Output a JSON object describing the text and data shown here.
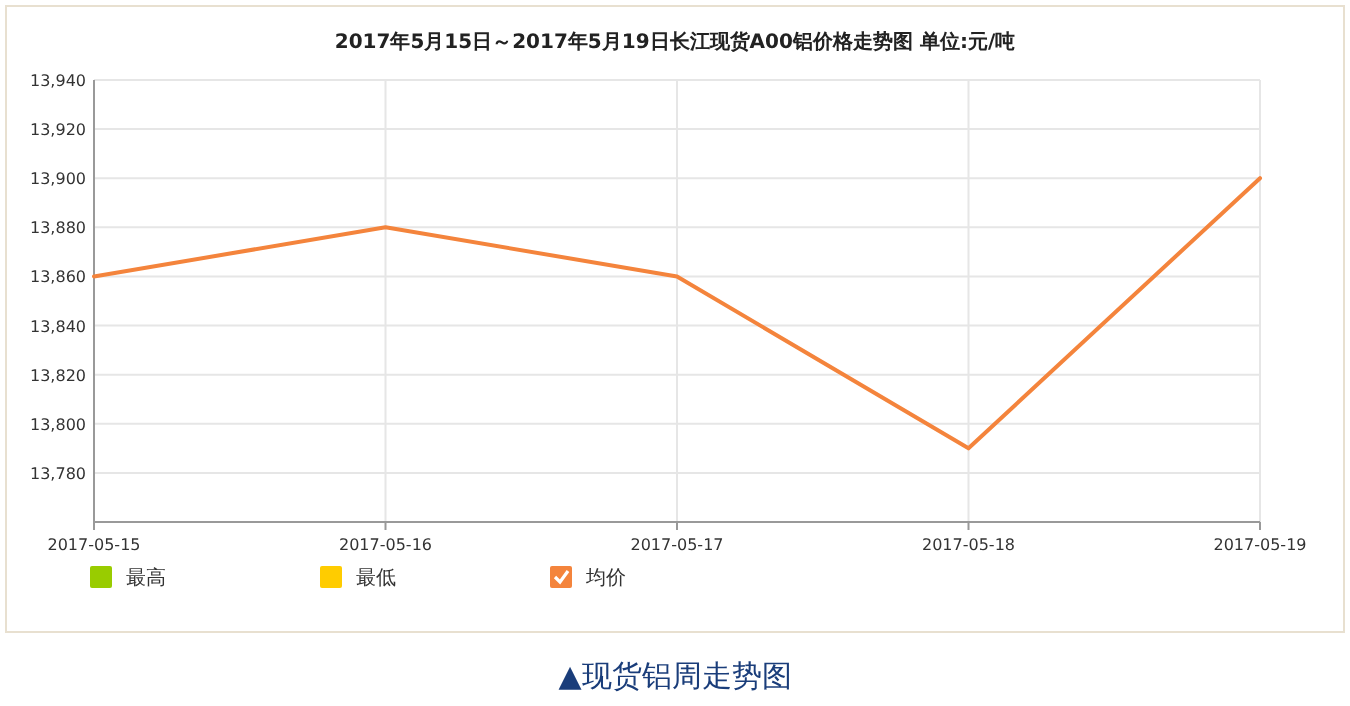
{
  "chart_data": {
    "type": "line",
    "title": "2017年5月15日～2017年5月19日长江现货A00铝价格走势图 单位:元/吨",
    "x": [
      "2017-05-15",
      "2017-05-16",
      "2017-05-17",
      "2017-05-18",
      "2017-05-19"
    ],
    "xticks": [
      "2017-05-15",
      "2017-05-16",
      "2017-05-17",
      "2017-05-18",
      "2017-05-19"
    ],
    "xlim": [
      "2017-05-15",
      "2017-05-19"
    ],
    "series": [
      {
        "name": "最高",
        "color": "#99cc00",
        "values": [
          null,
          null,
          null,
          null,
          null
        ]
      },
      {
        "name": "最低",
        "color": "#ffcc00",
        "values": [
          null,
          null,
          null,
          null,
          null
        ]
      },
      {
        "name": "均价",
        "color": "#f4843c",
        "values": [
          13860,
          13880,
          13860,
          13790,
          13900
        ]
      }
    ],
    "ylim": [
      13760,
      13940
    ],
    "yticks": [
      {
        "value": 13780,
        "label": "13,780"
      },
      {
        "value": 13800,
        "label": "13,800"
      },
      {
        "value": 13820,
        "label": "13,820"
      },
      {
        "value": 13840,
        "label": "13,840"
      },
      {
        "value": 13860,
        "label": "13,860"
      },
      {
        "value": 13880,
        "label": "13,880"
      },
      {
        "value": 13900,
        "label": "13,900"
      },
      {
        "value": 13920,
        "label": "13,920"
      },
      {
        "value": 13940,
        "label": "13,940"
      }
    ],
    "grid": true,
    "legend": "bottom",
    "marker": "none",
    "line_style": "solid",
    "annotations": [
      "▲现货铝周走势图"
    ]
  }
}
